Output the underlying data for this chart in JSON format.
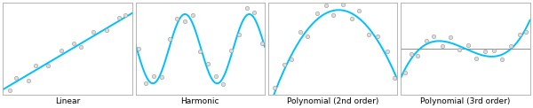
{
  "titles": [
    "Linear",
    "Harmonic",
    "Polynomial (2nd order)",
    "Polynomial (3rd order)"
  ],
  "line_color": "#00BFFF",
  "scatter_facecolor": "#DCDCDC",
  "scatter_edgecolor": "#999999",
  "background_color": "#FFFFFF",
  "border_color": "#AAAAAA",
  "hline_color": "#666666",
  "title_fontsize": 6.5,
  "line_width": 1.4,
  "marker_size": 10,
  "marker_linewidth": 0.4,
  "figsize": [
    6.0,
    1.22
  ],
  "dpi": 100,
  "spine_linewidth": 0.6
}
